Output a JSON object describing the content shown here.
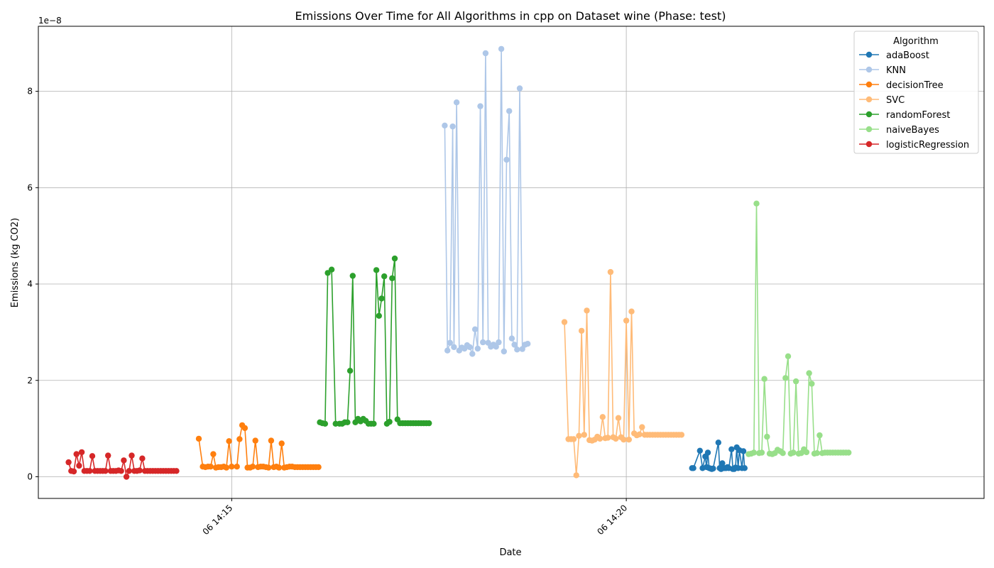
{
  "chart_data": {
    "type": "line",
    "title": "Emissions Over Time for All Algorithms in cpp on Dataset wine (Phase: test)",
    "xlabel": "Date",
    "ylabel": "Emissions (kg CO2)",
    "y_offset_label": "1e−8",
    "xlim": [
      "06 14:12:33",
      "06 14:24:32"
    ],
    "ylim": [
      -4.5,
      93.5
    ],
    "y_scale_note": "y values in units of 1e-9 kg CO2 (tick labels shown in 1e-8)",
    "y_ticks": [
      0,
      20,
      40,
      60,
      80
    ],
    "y_tick_labels": [
      "0",
      "2",
      "4",
      "6",
      "8"
    ],
    "x_ticks": [
      "06 14:15:00",
      "06 14:20:00"
    ],
    "x_tick_labels": [
      "06 14:15",
      "06 14:20"
    ],
    "grid": true,
    "legend": {
      "title": "Algorithm",
      "placement": "top-right"
    },
    "series": [
      {
        "name": "adaBoost",
        "color": "#1f77b4",
        "x": [
          "06 14:20:50",
          "06 14:20:51",
          "06 14:20:56",
          "06 14:20:58",
          "06 14:21:00",
          "06 14:21:01",
          "06 14:21:02",
          "06 14:21:03",
          "06 14:21:04",
          "06 14:21:05",
          "06 14:21:06",
          "06 14:21:10",
          "06 14:21:11",
          "06 14:21:12",
          "06 14:21:13",
          "06 14:21:14",
          "06 14:21:15",
          "06 14:21:16",
          "06 14:21:17",
          "06 14:21:18",
          "06 14:21:20",
          "06 14:21:21",
          "06 14:21:22",
          "06 14:21:23",
          "06 14:21:24",
          "06 14:21:25",
          "06 14:21:26",
          "06 14:21:28",
          "06 14:21:29",
          "06 14:21:30"
        ],
        "y": [
          1.8,
          1.8,
          5.4,
          1.8,
          4.2,
          2,
          5,
          1.8,
          1.7,
          1.6,
          1.7,
          7.1,
          1.8,
          1.6,
          2.8,
          1.8,
          1.8,
          1.8,
          2,
          1.8,
          5.7,
          1.6,
          1.6,
          1.9,
          6.1,
          1.8,
          5.5,
          1.8,
          5.3,
          1.8
        ]
      },
      {
        "name": "KNN",
        "color": "#aec7e8",
        "x": [
          "06 14:17:42",
          "06 14:17:44",
          "06 14:17:46",
          "06 14:17:48",
          "06 14:17:49",
          "06 14:17:51",
          "06 14:17:53",
          "06 14:17:55",
          "06 14:17:57",
          "06 14:17:59",
          "06 14:18:01",
          "06 14:18:03",
          "06 14:18:05",
          "06 14:18:07",
          "06 14:18:09",
          "06 14:18:11",
          "06 14:18:13",
          "06 14:18:15",
          "06 14:18:17",
          "06 14:18:19",
          "06 14:18:21",
          "06 14:18:23",
          "06 14:18:25",
          "06 14:18:27",
          "06 14:18:29",
          "06 14:18:31",
          "06 14:18:33",
          "06 14:18:35",
          "06 14:18:37",
          "06 14:18:39",
          "06 14:18:41",
          "06 14:18:43",
          "06 14:18:45"
        ],
        "y": [
          72.9,
          26.2,
          27.8,
          72.7,
          26.9,
          77.7,
          26.2,
          26.8,
          26.6,
          27.3,
          26.9,
          25.5,
          30.6,
          26.6,
          76.9,
          27.9,
          87.9,
          27.8,
          27,
          27.4,
          27,
          27.9,
          88.8,
          26,
          65.8,
          75.9,
          28.7,
          27.4,
          26.4,
          80.6,
          26.5,
          27.4,
          27.6
        ]
      },
      {
        "name": "decisionTree",
        "color": "#ff7f0e",
        "x": [
          "06 14:14:35",
          "06 14:14:38",
          "06 14:14:40",
          "06 14:14:42",
          "06 14:14:44",
          "06 14:14:46",
          "06 14:14:48",
          "06 14:14:50",
          "06 14:14:52",
          "06 14:14:54",
          "06 14:14:56",
          "06 14:14:58",
          "06 14:15:00",
          "06 14:15:04",
          "06 14:15:06",
          "06 14:15:08",
          "06 14:15:10",
          "06 14:15:12",
          "06 14:15:14",
          "06 14:15:16",
          "06 14:15:18",
          "06 14:15:20",
          "06 14:15:22",
          "06 14:15:24",
          "06 14:15:26",
          "06 14:15:28",
          "06 14:15:30",
          "06 14:15:32",
          "06 14:15:34",
          "06 14:15:36",
          "06 14:15:38",
          "06 14:15:40",
          "06 14:15:42",
          "06 14:15:44",
          "06 14:15:46",
          "06 14:15:48",
          "06 14:15:50",
          "06 14:15:52",
          "06 14:15:54",
          "06 14:15:56",
          "06 14:15:58",
          "06 14:16:00",
          "06 14:16:02",
          "06 14:16:04",
          "06 14:16:06"
        ],
        "y": [
          7.9,
          2.1,
          2,
          2.1,
          2.1,
          4.7,
          1.9,
          2,
          2,
          2.1,
          1.9,
          7.4,
          2.1,
          2.1,
          7.8,
          10.7,
          10.1,
          1.9,
          1.9,
          2.1,
          7.5,
          2,
          2.1,
          2.1,
          2,
          1.9,
          7.5,
          2,
          2.1,
          1.9,
          6.9,
          1.9,
          2,
          2.1,
          2.1,
          2,
          2,
          2,
          2,
          2,
          2,
          2,
          2,
          2,
          2
        ]
      },
      {
        "name": "SVC",
        "color": "#ffbb78",
        "x": [
          "06 14:19:13",
          "06 14:19:16",
          "06 14:19:18",
          "06 14:19:20",
          "06 14:19:22",
          "06 14:19:24",
          "06 14:19:26",
          "06 14:19:28",
          "06 14:19:30",
          "06 14:19:32",
          "06 14:19:34",
          "06 14:19:36",
          "06 14:19:38",
          "06 14:19:40",
          "06 14:19:42",
          "06 14:19:44",
          "06 14:19:46",
          "06 14:19:48",
          "06 14:19:50",
          "06 14:19:52",
          "06 14:19:54",
          "06 14:19:56",
          "06 14:19:58",
          "06 14:20:00",
          "06 14:20:02",
          "06 14:20:04",
          "06 14:20:06",
          "06 14:20:08",
          "06 14:20:10",
          "06 14:20:12",
          "06 14:20:14",
          "06 14:20:16",
          "06 14:20:18",
          "06 14:20:20",
          "06 14:20:22",
          "06 14:20:24",
          "06 14:20:26",
          "06 14:20:28",
          "06 14:20:30",
          "06 14:20:32",
          "06 14:20:34",
          "06 14:20:36",
          "06 14:20:38",
          "06 14:20:40",
          "06 14:20:42"
        ],
        "y": [
          32.1,
          7.8,
          7.8,
          7.8,
          0.3,
          8.5,
          30.3,
          8.7,
          34.5,
          7.6,
          7.5,
          7.7,
          8.3,
          7.9,
          12.4,
          8,
          8.1,
          42.5,
          8.2,
          7.9,
          12.2,
          8.2,
          7.7,
          32.4,
          7.7,
          34.3,
          9,
          8.6,
          8.8,
          10.3,
          8.7,
          8.7,
          8.7,
          8.7,
          8.7,
          8.7,
          8.7,
          8.7,
          8.7,
          8.7,
          8.7,
          8.7,
          8.7,
          8.7,
          8.7
        ]
      },
      {
        "name": "randomForest",
        "color": "#2ca02c",
        "x": [
          "06 14:16:07",
          "06 14:16:09",
          "06 14:16:11",
          "06 14:16:13",
          "06 14:16:16",
          "06 14:16:19",
          "06 14:16:22",
          "06 14:16:24",
          "06 14:16:26",
          "06 14:16:28",
          "06 14:16:30",
          "06 14:16:32",
          "06 14:16:34",
          "06 14:16:36",
          "06 14:16:38",
          "06 14:16:40",
          "06 14:16:42",
          "06 14:16:44",
          "06 14:16:46",
          "06 14:16:48",
          "06 14:16:50",
          "06 14:16:52",
          "06 14:16:54",
          "06 14:16:56",
          "06 14:16:58",
          "06 14:17:00",
          "06 14:17:02",
          "06 14:17:04",
          "06 14:17:06",
          "06 14:17:08",
          "06 14:17:10",
          "06 14:17:12",
          "06 14:17:14",
          "06 14:17:16",
          "06 14:17:18",
          "06 14:17:20",
          "06 14:17:22",
          "06 14:17:24",
          "06 14:17:26",
          "06 14:17:28",
          "06 14:17:30"
        ],
        "y": [
          11.3,
          11.1,
          11,
          42.3,
          43,
          11,
          11,
          11,
          11.3,
          11.3,
          22,
          41.7,
          11.3,
          12,
          11.5,
          12,
          11.6,
          11,
          11,
          11,
          42.9,
          33.4,
          37,
          41.6,
          11,
          11.4,
          41.2,
          45.3,
          11.9,
          11.1,
          11.1,
          11.1,
          11.1,
          11.1,
          11.1,
          11.1,
          11.1,
          11.1,
          11.1,
          11.1,
          11.1
        ]
      },
      {
        "name": "naiveBayes",
        "color": "#98df8a",
        "x": [
          "06 14:21:33",
          "06 14:21:35",
          "06 14:21:37",
          "06 14:21:39",
          "06 14:21:41",
          "06 14:21:43",
          "06 14:21:45",
          "06 14:21:47",
          "06 14:21:49",
          "06 14:21:51",
          "06 14:21:53",
          "06 14:21:55",
          "06 14:21:57",
          "06 14:21:59",
          "06 14:22:01",
          "06 14:22:03",
          "06 14:22:05",
          "06 14:22:07",
          "06 14:22:09",
          "06 14:22:11",
          "06 14:22:13",
          "06 14:22:15",
          "06 14:22:17",
          "06 14:22:19",
          "06 14:22:21",
          "06 14:22:23",
          "06 14:22:25",
          "06 14:22:27",
          "06 14:22:29",
          "06 14:22:31",
          "06 14:22:33",
          "06 14:22:35",
          "06 14:22:37",
          "06 14:22:39",
          "06 14:22:41",
          "06 14:22:43",
          "06 14:22:45",
          "06 14:22:47",
          "06 14:22:49"
        ],
        "y": [
          4.7,
          4.8,
          5,
          56.7,
          4.9,
          5,
          20.3,
          8.3,
          4.8,
          4.7,
          4.9,
          5.6,
          5.3,
          4.9,
          20.5,
          25,
          4.8,
          5,
          19.8,
          4.8,
          4.9,
          5.7,
          5.1,
          21.5,
          19.3,
          4.8,
          4.9,
          8.6,
          4.9,
          5,
          5,
          5,
          5,
          5,
          5,
          5,
          5,
          5,
          5
        ]
      },
      {
        "name": "logisticRegression",
        "color": "#d62728",
        "x": [
          "06 14:12:56",
          "06 14:12:58",
          "06 14:13:00",
          "06 14:13:02",
          "06 14:13:04",
          "06 14:13:06",
          "06 14:13:08",
          "06 14:13:10",
          "06 14:13:12",
          "06 14:13:14",
          "06 14:13:16",
          "06 14:13:18",
          "06 14:13:20",
          "06 14:13:22",
          "06 14:13:24",
          "06 14:13:26",
          "06 14:13:28",
          "06 14:13:30",
          "06 14:13:32",
          "06 14:13:34",
          "06 14:13:36",
          "06 14:13:38",
          "06 14:13:40",
          "06 14:13:42",
          "06 14:13:44",
          "06 14:13:46",
          "06 14:13:48",
          "06 14:13:50",
          "06 14:13:52",
          "06 14:13:54",
          "06 14:13:56",
          "06 14:13:58",
          "06 14:14:00",
          "06 14:14:02",
          "06 14:14:04",
          "06 14:14:06",
          "06 14:14:08",
          "06 14:14:10",
          "06 14:14:12",
          "06 14:14:14",
          "06 14:14:16",
          "06 14:14:18"
        ],
        "y": [
          3,
          1.2,
          1.1,
          4.7,
          2.3,
          5.1,
          1.2,
          1.2,
          1.2,
          4.3,
          1.2,
          1.2,
          1.2,
          1.2,
          1.2,
          4.4,
          1.2,
          1.2,
          1.2,
          1.3,
          1.2,
          3.4,
          0,
          1.2,
          4.4,
          1.2,
          1.2,
          1.3,
          3.8,
          1.2,
          1.2,
          1.2,
          1.2,
          1.2,
          1.2,
          1.2,
          1.2,
          1.2,
          1.2,
          1.2,
          1.2,
          1.2
        ]
      }
    ]
  }
}
